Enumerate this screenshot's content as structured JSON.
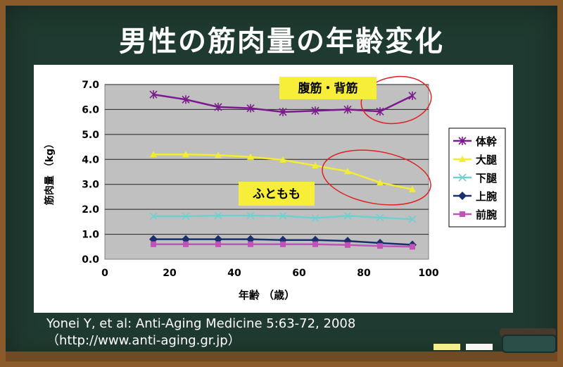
{
  "title": "男性の筋肉量の年齢変化",
  "citation": {
    "line1": "Yonei Y, et al: Anti-Aging Medicine 5:63-72, 2008",
    "line2": "（http://www.anti-aging.gr.jp）"
  },
  "chart_data": {
    "type": "line",
    "xlabel": "年齢 （歳）",
    "ylabel": "筋肉量 （kg）",
    "xlim": [
      0,
      100
    ],
    "ylim": [
      0.0,
      7.0
    ],
    "xticks": [
      "0",
      "20",
      "40",
      "60",
      "80",
      "100"
    ],
    "yticks": [
      "0.0",
      "1.0",
      "2.0",
      "3.0",
      "4.0",
      "5.0",
      "6.0",
      "7.0"
    ],
    "x": [
      15,
      25,
      35,
      45,
      55,
      65,
      75,
      85,
      95
    ],
    "grid": true,
    "legend_position": "right",
    "series": [
      {
        "name": "体幹",
        "color": "#7a1a8c",
        "marker": "asterisk",
        "values": [
          6.6,
          6.4,
          6.1,
          6.05,
          5.9,
          5.95,
          6.0,
          5.92,
          6.55
        ]
      },
      {
        "name": "大腿",
        "color": "#f2ec32",
        "marker": "triangle",
        "values": [
          4.2,
          4.2,
          4.17,
          4.1,
          3.98,
          3.75,
          3.52,
          3.07,
          2.8
        ]
      },
      {
        "name": "下腿",
        "color": "#6fd0d0",
        "marker": "x",
        "values": [
          1.72,
          1.72,
          1.75,
          1.75,
          1.74,
          1.65,
          1.74,
          1.67,
          1.6
        ]
      },
      {
        "name": "上腕",
        "color": "#1a2f6b",
        "marker": "diamond",
        "values": [
          0.8,
          0.8,
          0.8,
          0.8,
          0.77,
          0.77,
          0.73,
          0.65,
          0.58
        ]
      },
      {
        "name": "前腕",
        "color": "#c053b8",
        "marker": "square",
        "values": [
          0.6,
          0.6,
          0.6,
          0.6,
          0.6,
          0.6,
          0.57,
          0.53,
          0.5
        ]
      }
    ],
    "annotations": [
      {
        "text": "腹筋・背筋"
      },
      {
        "text": "ふともも"
      }
    ]
  }
}
